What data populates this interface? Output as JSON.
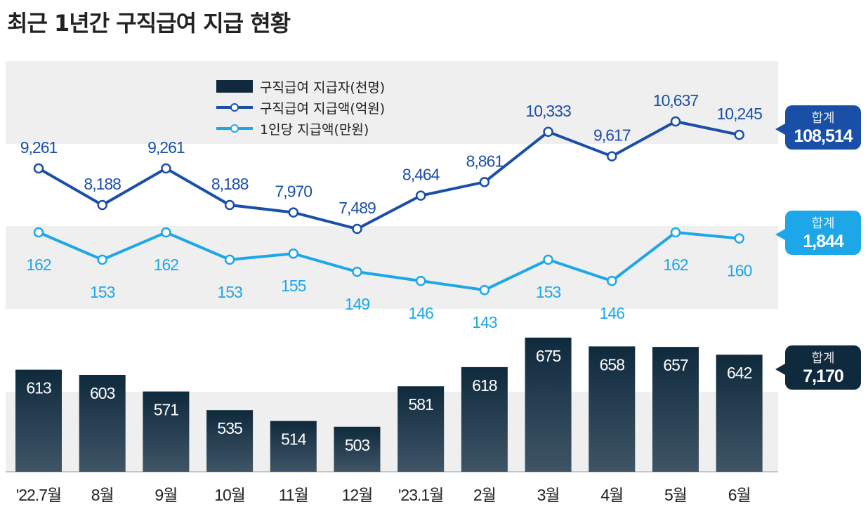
{
  "title": "최근 1년간 구직급여 지급 현황",
  "chart_data": {
    "type": "bar+line",
    "title": "최근 1년간 구직급여 지급 현황",
    "categories": [
      "'22.7월",
      "8월",
      "9월",
      "10월",
      "11월",
      "12월",
      "'23.1월",
      "2월",
      "3월",
      "4월",
      "5월",
      "6월"
    ],
    "series": [
      {
        "name": "구직급여 지급자(천명)",
        "type": "bar",
        "color": "#0f2a3d",
        "values": [
          613,
          603,
          571,
          535,
          514,
          503,
          581,
          618,
          675,
          658,
          657,
          642
        ],
        "total_label": "합계",
        "total": "7,170"
      },
      {
        "name": "구직급여 지급액(억원)",
        "type": "line",
        "color": "#1a4fa8",
        "values": [
          9261,
          8188,
          9261,
          8188,
          7970,
          7489,
          8464,
          8861,
          10333,
          9617,
          10637,
          10245
        ],
        "total_label": "합계",
        "total": "108,514"
      },
      {
        "name": "1인당 지급액(만원)",
        "type": "line",
        "color": "#1ea7e8",
        "values": [
          162,
          153,
          162,
          153,
          155,
          149,
          146,
          143,
          153,
          146,
          162,
          160
        ],
        "total_label": "합계",
        "total": "1,844"
      }
    ],
    "legend_placement": "top-center",
    "grid": false
  }
}
